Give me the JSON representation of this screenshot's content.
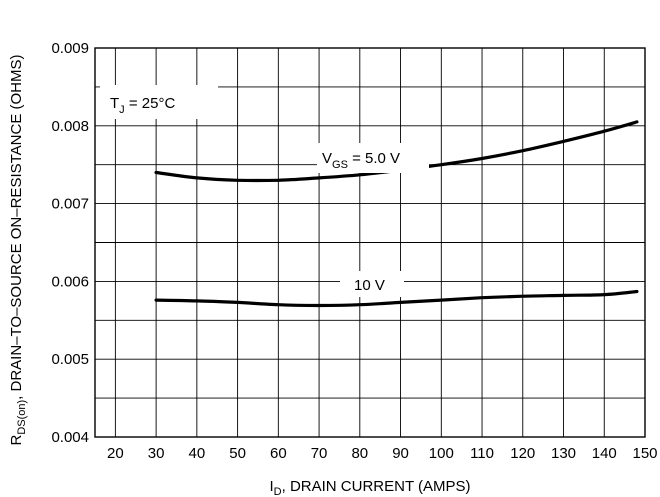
{
  "chart_data": {
    "type": "line",
    "title": "",
    "xlabel": {
      "main": "I",
      "sub": "D",
      "rest": ", DRAIN CURRENT (AMPS)"
    },
    "ylabel": {
      "main": "R",
      "sub": "DS(on)",
      "rest": ", DRAIN–TO–SOURCE ON–RESISTANCE (OHMS)"
    },
    "xlim": [
      15,
      150
    ],
    "ylim": [
      0.004,
      0.009
    ],
    "x_ticks": [
      20,
      30,
      40,
      50,
      60,
      70,
      80,
      90,
      100,
      110,
      120,
      130,
      140,
      150
    ],
    "x_tick_labels": [
      "20",
      "30",
      "40",
      "50",
      "60",
      "70",
      "80",
      "90",
      "100",
      "110",
      "120",
      "130",
      "140",
      "150"
    ],
    "y_ticks": [
      0.004,
      0.005,
      0.006,
      0.007,
      0.008,
      0.009
    ],
    "y_tick_labels": [
      "0.004",
      "0.005",
      "0.006",
      "0.007",
      "0.008",
      "0.009"
    ],
    "grid": true,
    "line_color": "#000000",
    "series": [
      {
        "name": "VGS = 5.0 V",
        "x": [
          30,
          40,
          50,
          60,
          70,
          80,
          90,
          100,
          110,
          120,
          130,
          140,
          148
        ],
        "y": [
          0.0074,
          0.00733,
          0.0073,
          0.0073,
          0.00733,
          0.00737,
          0.00743,
          0.0075,
          0.00758,
          0.00768,
          0.0078,
          0.00793,
          0.00805
        ]
      },
      {
        "name": "10 V",
        "x": [
          30,
          40,
          50,
          60,
          70,
          80,
          90,
          100,
          110,
          120,
          130,
          140,
          148
        ],
        "y": [
          0.00576,
          0.00575,
          0.00573,
          0.0057,
          0.00569,
          0.0057,
          0.00573,
          0.00576,
          0.00579,
          0.00581,
          0.00582,
          0.00583,
          0.00587
        ]
      }
    ],
    "annotations": {
      "tj": {
        "main": "T",
        "sub": "J",
        "rest": " =  25°C"
      },
      "vgs5": {
        "main": "V",
        "sub": "GS",
        "rest": " = 5.0 V"
      },
      "vgs10": {
        "text": "10 V"
      }
    }
  }
}
